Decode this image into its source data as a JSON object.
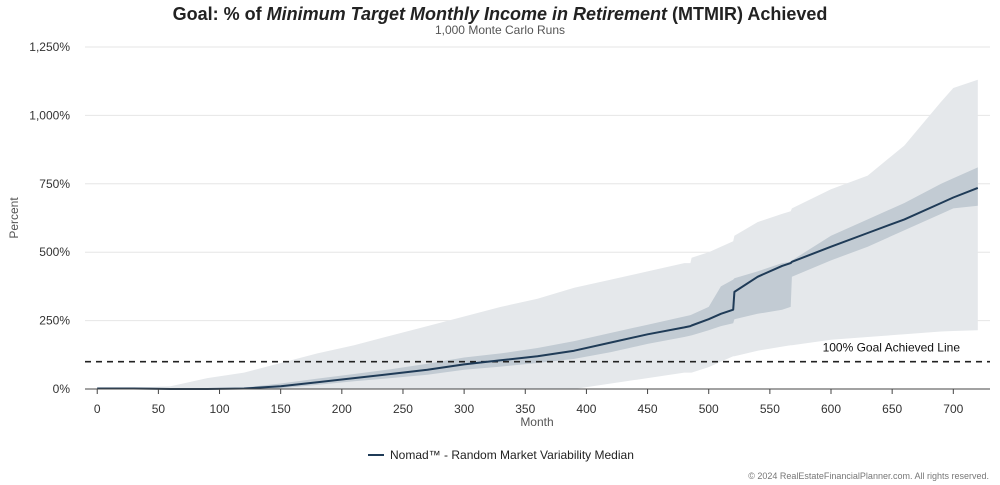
{
  "chart_data": {
    "type": "area",
    "title_parts": [
      {
        "text": "Goal: % of ",
        "italic": false
      },
      {
        "text": "Minimum Target Monthly Income in Retirement",
        "italic": true
      },
      {
        "text": " (MTMIR) Achieved",
        "italic": false
      }
    ],
    "subtitle": "1,000 Monte Carlo Runs",
    "xlabel": "Month",
    "ylabel": "Percent",
    "xlim": [
      -10,
      730
    ],
    "ylim": [
      0,
      1250
    ],
    "x_ticks": [
      0,
      50,
      100,
      150,
      200,
      250,
      300,
      350,
      400,
      450,
      500,
      550,
      600,
      650,
      700
    ],
    "y_ticks": [
      {
        "value": 0,
        "label": "0%"
      },
      {
        "value": 250,
        "label": "250%"
      },
      {
        "value": 500,
        "label": "500%"
      },
      {
        "value": 750,
        "label": "750%"
      },
      {
        "value": 1000,
        "label": "1,000%"
      },
      {
        "value": 1250,
        "label": "1,250%"
      }
    ],
    "grid": "horizontal",
    "reference_line": {
      "y": 100,
      "label": "100% Goal Achieved Line",
      "style": "dashed"
    },
    "x": [
      0,
      30,
      60,
      90,
      120,
      150,
      180,
      210,
      240,
      270,
      300,
      330,
      360,
      390,
      420,
      450,
      480,
      485,
      486,
      500,
      510,
      520,
      521,
      540,
      560,
      567,
      568,
      600,
      630,
      660,
      690,
      700,
      720
    ],
    "series": [
      {
        "name": "Nomad™ - Random Market Variability Median",
        "role": "median",
        "color": "#1f3b57",
        "values": [
          2,
          2,
          0,
          0,
          2,
          10,
          25,
          40,
          55,
          70,
          90,
          105,
          120,
          140,
          170,
          200,
          225,
          230,
          232,
          255,
          275,
          290,
          355,
          410,
          450,
          460,
          465,
          520,
          570,
          620,
          680,
          700,
          735
        ]
      },
      {
        "role": "inner_band",
        "color": "#c2cbd3",
        "lower": [
          0,
          0,
          0,
          0,
          0,
          3,
          15,
          28,
          40,
          52,
          70,
          82,
          95,
          110,
          135,
          165,
          190,
          195,
          196,
          215,
          230,
          240,
          255,
          275,
          290,
          300,
          410,
          470,
          520,
          580,
          640,
          660,
          670
        ],
        "upper": [
          5,
          5,
          0,
          0,
          5,
          20,
          38,
          55,
          72,
          92,
          115,
          130,
          150,
          175,
          205,
          235,
          265,
          270,
          272,
          300,
          375,
          400,
          405,
          430,
          460,
          465,
          470,
          560,
          620,
          680,
          750,
          770,
          810
        ]
      },
      {
        "role": "outer_band",
        "color": "#e5e8eb",
        "lower": [
          0,
          0,
          0,
          0,
          0,
          0,
          0,
          0,
          0,
          0,
          0,
          0,
          0,
          0,
          20,
          40,
          60,
          60,
          60,
          80,
          100,
          120,
          120,
          140,
          155,
          160,
          160,
          180,
          190,
          200,
          210,
          212,
          215
        ],
        "upper": [
          5,
          5,
          10,
          40,
          60,
          95,
          130,
          160,
          195,
          230,
          265,
          300,
          330,
          370,
          400,
          430,
          460,
          460,
          480,
          500,
          520,
          540,
          560,
          610,
          640,
          650,
          660,
          730,
          780,
          890,
          1050,
          1100,
          1130
        ]
      }
    ],
    "legend": {
      "position": "bottom-center",
      "label": "Nomad™ - Random Market Variability Median"
    }
  },
  "footer": {
    "copyright": "© 2024 RealEstateFinancialPlanner.com. All rights reserved."
  }
}
